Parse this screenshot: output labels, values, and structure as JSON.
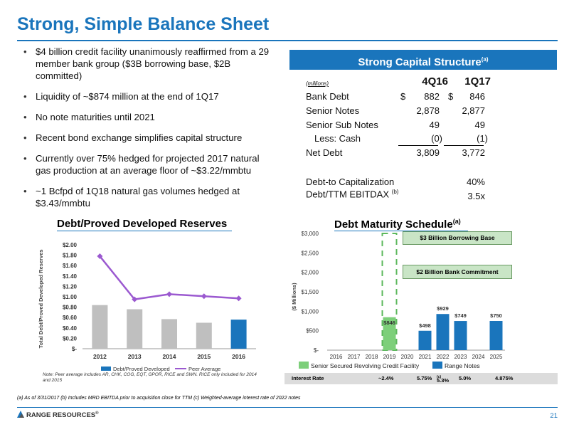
{
  "page": {
    "title": "Strong, Simple Balance Sheet",
    "page_number": "21",
    "brand": "RANGE RESOURCES",
    "brand_mark": "®",
    "footnote": "(a)  As of 3/31/2017 (b) Includes MRD EBITDA prior to acquisition close for TTM  (c) Weighted-average interest rate of 2022 notes",
    "colors": {
      "accent": "#1a75bc",
      "gray_bar": "#bfbfbf",
      "peer_line": "#9b59d0",
      "green": "#5cb85c",
      "green_fill": "#7dcf7a"
    }
  },
  "bullets": [
    "$4 billion credit facility unanimously reaffirmed from a 29 member bank group ($3B borrowing base, $2B committed)",
    "Liquidity of ~$874 million at the end of 1Q17",
    "No note maturities until 2021",
    "Recent bond exchange simplifies capital structure",
    "Currently over 75% hedged for projected 2017 natural gas production at an average floor of ~$3.22/mmbtu",
    "~1 Bcfpd of 1Q18 natural gas volumes hedged at $3.43/mmbtu"
  ],
  "capital_structure": {
    "title": "Strong Capital Structure",
    "title_sup": "(a)",
    "units": "(millions)",
    "columns": [
      "4Q16",
      "1Q17"
    ],
    "currency": "$",
    "rows": [
      {
        "label": "Bank Debt",
        "values": [
          "882",
          "846"
        ]
      },
      {
        "label": "Senior Notes",
        "values": [
          "2,878",
          "2,877"
        ]
      },
      {
        "label": "Senior Sub Notes",
        "values": [
          "49",
          "49"
        ]
      },
      {
        "label": "Less: Cash",
        "values": [
          "(0)",
          "(1)"
        ]
      },
      {
        "label": "Net Debt",
        "values": [
          "3,809",
          "3,772"
        ]
      }
    ],
    "ratios": [
      {
        "label": "Debt-to Capitalization",
        "sup": "",
        "value": "40%"
      },
      {
        "label": "Debt/TTM EBITDAX",
        "sup": "(b)",
        "value": "3.5x"
      }
    ]
  },
  "chart_data": [
    {
      "type": "bar",
      "title": "Debt/Proved Developed Reserves",
      "ylabel": "Total Debt/Proved Developed Reserves",
      "xlabel": "",
      "categories": [
        "2012",
        "2013",
        "2014",
        "2015",
        "2016"
      ],
      "ylim": [
        0,
        2.0
      ],
      "yticks": [
        "$-",
        "$0.20",
        "$0.40",
        "$0.60",
        "$0.80",
        "$1.00",
        "$1.20",
        "$1.40",
        "$1.60",
        "$1.80",
        "$2.00"
      ],
      "grid": false,
      "legend_placement": "bottom",
      "series": [
        {
          "name": "Debt/Proved Developed",
          "kind": "bar",
          "values": [
            0.84,
            0.76,
            0.57,
            0.5,
            0.56
          ],
          "colors": [
            "#bfbfbf",
            "#bfbfbf",
            "#bfbfbf",
            "#bfbfbf",
            "#1a75bc"
          ]
        },
        {
          "name": "Peer Average",
          "kind": "line",
          "values": [
            1.78,
            0.95,
            1.05,
            1.01,
            0.97
          ],
          "color": "#9b59d0"
        }
      ],
      "note": "Note: Peer average includes AR, CHK, COG, EQT, GPOR, RICE and SWN.  RICE only included for 2014 and 2015"
    },
    {
      "type": "bar",
      "title": "Debt Maturity Schedule",
      "title_sup": "(a)",
      "ylabel": "($ Millions)",
      "xlabel": "",
      "categories": [
        "2016",
        "2017",
        "2018",
        "2019",
        "2020",
        "2021",
        "2022",
        "2023",
        "2024",
        "2025"
      ],
      "ylim": [
        0,
        3000
      ],
      "yticks": [
        "$-",
        "$500",
        "$1,000",
        "$1,500",
        "$2,000",
        "$2,500",
        "$3,000"
      ],
      "grid": false,
      "legend_placement": "bottom",
      "series": [
        {
          "name": "Senior Secured Revolving Credit Facility",
          "color": "#5cb85c",
          "values": [
            0,
            0,
            0,
            846,
            0,
            0,
            0,
            0,
            0,
            0
          ],
          "labels": [
            "",
            "",
            "",
            "$846",
            "",
            "",
            "",
            "",
            "",
            ""
          ]
        },
        {
          "name": "Range Notes",
          "color": "#1a75bc",
          "values": [
            0,
            0,
            0,
            0,
            0,
            498,
            929,
            749,
            0,
            750
          ],
          "labels": [
            "",
            "",
            "",
            "",
            "",
            "$498",
            "$929",
            "$749",
            "",
            "$750"
          ]
        }
      ],
      "reference_boxes": [
        {
          "label": "$3 Billion Borrowing Base",
          "value": 3000,
          "category": "2019"
        },
        {
          "label": "$2 Billion Bank Commitment",
          "value": 2000,
          "category": "2019"
        }
      ],
      "interest_rate": {
        "label": "Interest Rate",
        "values": [
          {
            "category": "2019",
            "text": "~2.4%",
            "sup": ""
          },
          {
            "category": "2021",
            "text": "5.75%",
            "sup": ""
          },
          {
            "category": "2022",
            "text": "5.3%",
            "sup": "(c)"
          },
          {
            "category": "2023",
            "text": "5.0%",
            "sup": ""
          },
          {
            "category": "2025",
            "text": "4.875%",
            "sup": ""
          }
        ]
      }
    }
  ]
}
